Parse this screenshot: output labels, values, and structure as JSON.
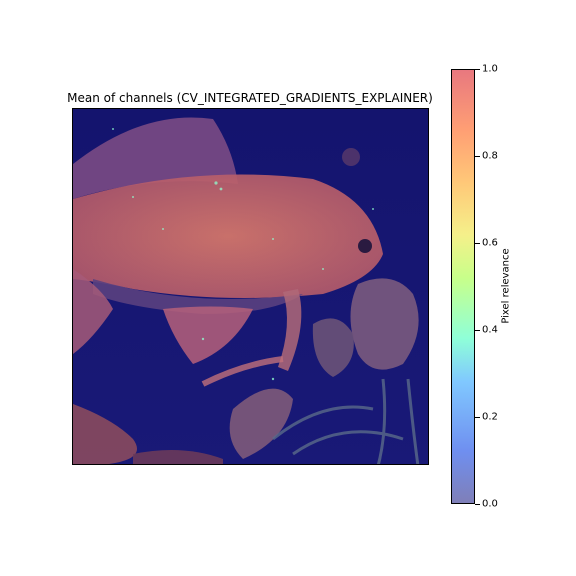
{
  "chart_data": {
    "type": "heatmap",
    "title": "Mean of channels (CV_INTEGRATED_GRADIENTS_EXPLAINER)",
    "colorbar": {
      "label": "Pixel relevance",
      "range": [
        0.0,
        1.0
      ],
      "ticks": [
        {
          "value": 0.0,
          "label": "0.0"
        },
        {
          "value": 0.2,
          "label": "0.2"
        },
        {
          "value": 0.4,
          "label": "0.4"
        },
        {
          "value": 0.6,
          "label": "0.6"
        },
        {
          "value": 0.8,
          "label": "0.8"
        },
        {
          "value": 1.0,
          "label": "1.0"
        }
      ]
    },
    "image_subject": "goldfish photo overlaid with relevance heatmap"
  }
}
